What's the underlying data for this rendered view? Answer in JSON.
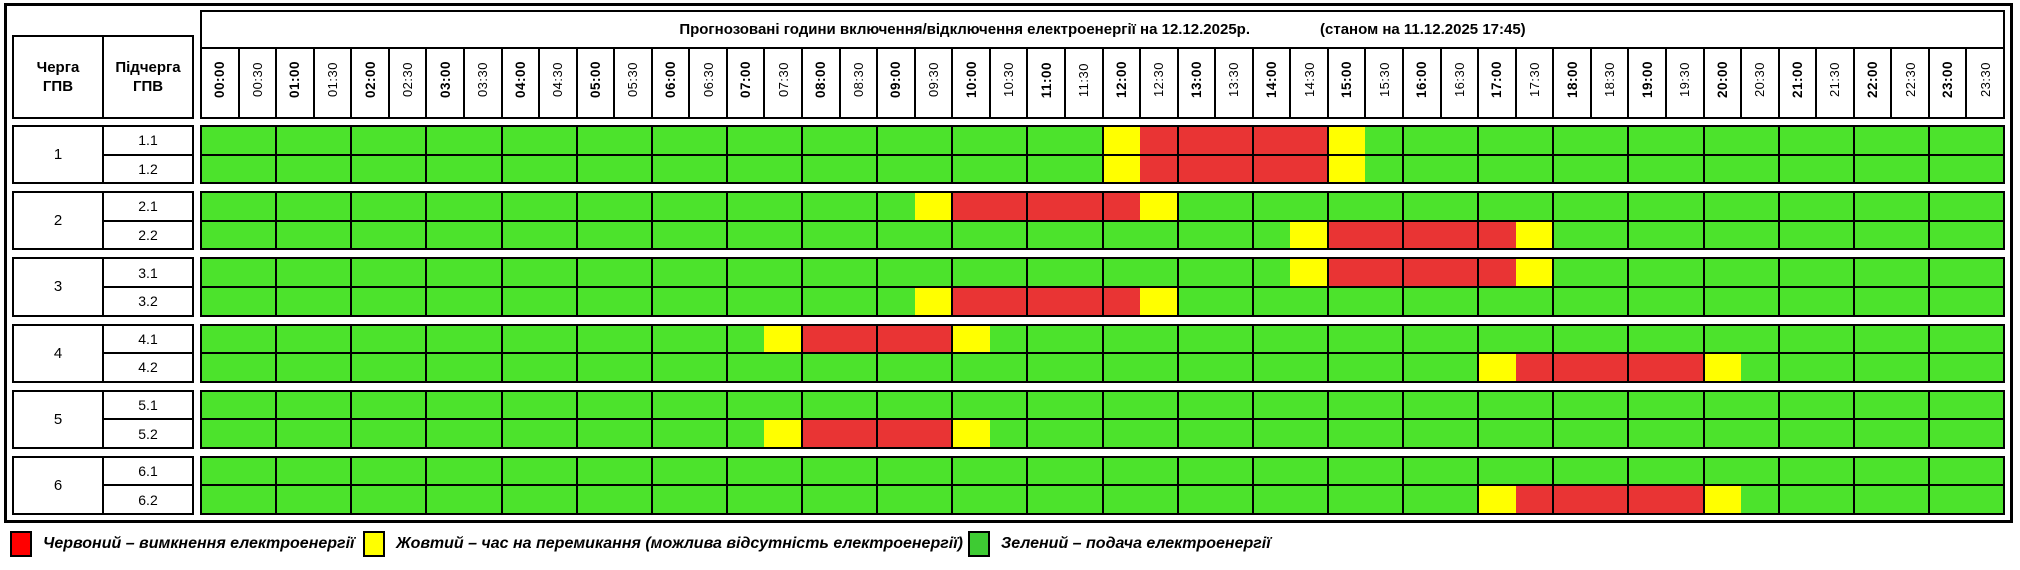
{
  "header": {
    "queue_col": "Черга\nГПВ",
    "subqueue_col": "Підчерга\nГПВ"
  },
  "colors": {
    "power_on_green": "#4ce32c",
    "power_off_red": "#e93434",
    "switching_yellow": "#ffff00",
    "legend_red": "#ff0000",
    "legend_green": "#3ecb33",
    "border_black": "#000000"
  },
  "chart_data": {
    "type": "heatmap",
    "title": "Прогнозовані години включення/відключення електроенергії на 12.12.2025р.",
    "as_of": "(станом на 11.12.2025 17:45)",
    "x": [
      "00:00",
      "00:30",
      "01:00",
      "01:30",
      "02:00",
      "02:30",
      "03:00",
      "03:30",
      "04:00",
      "04:30",
      "05:00",
      "05:30",
      "06:00",
      "06:30",
      "07:00",
      "07:30",
      "08:00",
      "08:30",
      "09:00",
      "09:30",
      "10:00",
      "10:30",
      "11:00",
      "11:30",
      "12:00",
      "12:30",
      "13:00",
      "13:30",
      "14:00",
      "14:30",
      "15:00",
      "15:30",
      "16:00",
      "16:30",
      "17:00",
      "17:30",
      "18:00",
      "18:30",
      "19:00",
      "19:30",
      "20:00",
      "20:30",
      "21:00",
      "21:30",
      "22:00",
      "22:30",
      "23:00",
      "23:30"
    ],
    "state_codes": {
      "G": "подача електроенергії (зелений)",
      "Y": "час на перемикання (жовтий)",
      "R": "вимкнення електроенергії (червоний)"
    },
    "groups": [
      {
        "queue": "1",
        "rows": [
          {
            "label": "1.1",
            "states": "GGGGGGGGGGGGGGGGGGGGGGGGYRRRRRYGGGGGGGGGGGGGGGGG"
          },
          {
            "label": "1.2",
            "states": "GGGGGGGGGGGGGGGGGGGGGGGGYRRRRRYGGGGGGGGGGGGGGGGG"
          }
        ]
      },
      {
        "queue": "2",
        "rows": [
          {
            "label": "2.1",
            "states": "GGGGGGGGGGGGGGGGGGGYRRRRRYGGGGGGGGGGGGGGGGGGGGGG"
          },
          {
            "label": "2.2",
            "states": "GGGGGGGGGGGGGGGGGGGGGGGGGGGGGYRRRRRYGGGGGGGGGGGG"
          }
        ]
      },
      {
        "queue": "3",
        "rows": [
          {
            "label": "3.1",
            "states": "GGGGGGGGGGGGGGGGGGGGGGGGGGGGGYRRRRRYGGGGGGGGGGGG"
          },
          {
            "label": "3.2",
            "states": "GGGGGGGGGGGGGGGGGGGYRRRRRYGGGGGGGGGGGGGGGGGGGGGG"
          }
        ]
      },
      {
        "queue": "4",
        "rows": [
          {
            "label": "4.1",
            "states": "GGGGGGGGGGGGGGGYRRRRYGGGGGGGGGGGGGGGGGGGGGGGGGGG"
          },
          {
            "label": "4.2",
            "states": "GGGGGGGGGGGGGGGGGGGGGGGGGGGGGGGGGGYRRRRRYGGGGGGG"
          }
        ]
      },
      {
        "queue": "5",
        "rows": [
          {
            "label": "5.1",
            "states": "GGGGGGGGGGGGGGGGGGGGGGGGGGGGGGGGGGGGGGGGGGGGGGGG"
          },
          {
            "label": "5.2",
            "states": "GGGGGGGGGGGGGGGYRRRRYGGGGGGGGGGGGGGGGGGGGGGGGGGG"
          }
        ]
      },
      {
        "queue": "6",
        "rows": [
          {
            "label": "6.1",
            "states": "GGGGGGGGGGGGGGGGGGGGGGGGGGGGGGGGGGGGGGGGGGGGGGGG"
          },
          {
            "label": "6.2",
            "states": "GGGGGGGGGGGGGGGGGGGGGGGGGGGGGGGGGGYRRRRRYGGGGGGG"
          }
        ]
      }
    ]
  },
  "legend": [
    {
      "swatch_color": "#ff0000",
      "text": "Червоний – вимкнення електроенергії"
    },
    {
      "swatch_color": "#ffff00",
      "text": "Жовтий – час на перемикання (можлива відсутність електроенергії)"
    },
    {
      "swatch_color": "#3ecb33",
      "text": "Зелений – подача електроенергії"
    }
  ]
}
